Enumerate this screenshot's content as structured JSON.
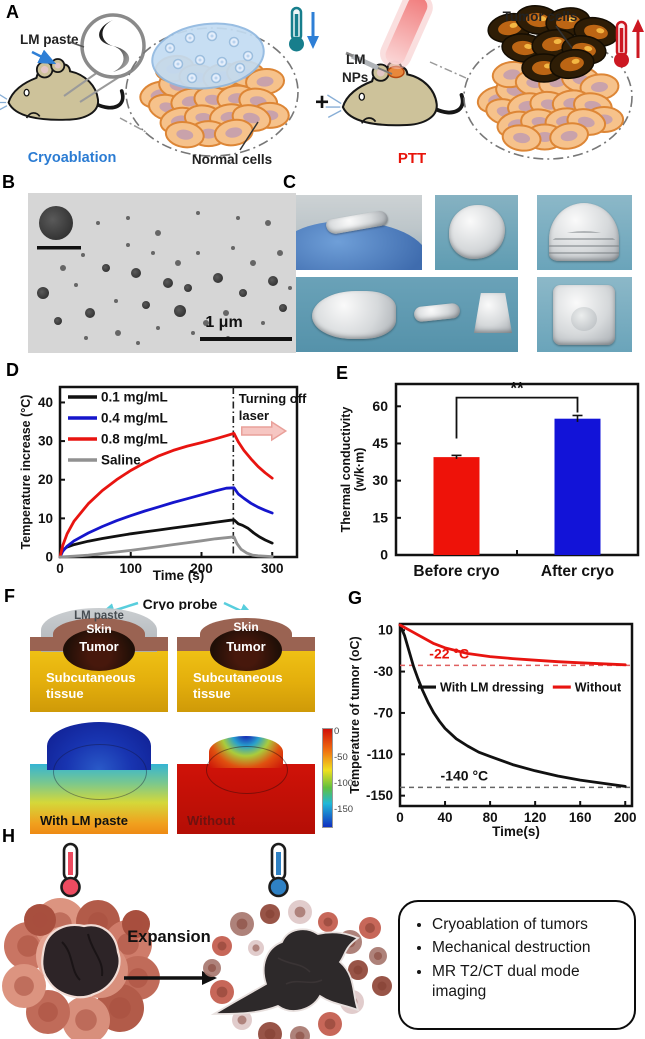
{
  "colors": {
    "cryo_blue": "#2b7cd3",
    "ptt_red": "#e8140a",
    "bar_red": "#ee1209",
    "bar_blue": "#1213d8"
  },
  "panels": {
    "a": {
      "label": "A",
      "lm_paste": "LM paste",
      "cryoablation": "Cryoablation",
      "normal_cells": "Normal cells",
      "plus": "+",
      "lm": "LM",
      "nps": "NPs",
      "ptt": "PTT",
      "tumor_cells": "Tumor cells"
    },
    "b": {
      "label": "B",
      "scale_label": "1 μm"
    },
    "c": {
      "label": "C"
    },
    "d": {
      "label": "D"
    },
    "e": {
      "label": "E"
    },
    "f": {
      "label": "F",
      "cryo_probe": "Cryo probe",
      "lm_paste": "LM paste",
      "skin": "Skin",
      "tumor": "Tumor",
      "subcut1": "Subcutaneous",
      "subcut2": "tissue",
      "with_lm": "With LM paste",
      "without": "Without",
      "colorbar_ticks": [
        "0",
        "-50",
        "-100",
        "-150"
      ]
    },
    "g": {
      "label": "G"
    },
    "h": {
      "label": "H",
      "expansion": "Expansion",
      "bullets": [
        "Cryoablation of tumors",
        "Mechanical destruction",
        "MR T2/CT dual mode imaging"
      ]
    }
  },
  "chart_data": [
    {
      "id": "panel-d",
      "type": "line",
      "title": "",
      "xlabel": "Time (s)",
      "ylabel": "Temperature increase (°C)",
      "xlim": [
        0,
        335
      ],
      "ylim": [
        0,
        44
      ],
      "xticks": [
        0,
        100,
        200,
        300
      ],
      "yticks": [
        0,
        10,
        20,
        30,
        40
      ],
      "legend": {
        "position": "top-left",
        "stacked": true
      },
      "vline": 245,
      "annotation": {
        "x": 247,
        "lines": [
          "Turning off",
          "laser"
        ]
      },
      "series": [
        {
          "name": "0.1 mg/mL",
          "color": "#111111",
          "x": [
            0,
            4,
            10,
            20,
            40,
            60,
            80,
            100,
            120,
            140,
            160,
            180,
            200,
            220,
            240,
            246,
            252,
            258,
            266,
            274,
            282,
            290,
            300
          ],
          "y": [
            0,
            1.8,
            2.6,
            3.2,
            4.1,
            4.8,
            5.4,
            6,
            6.5,
            7,
            7.5,
            8,
            8.5,
            9,
            9.5,
            9.6,
            8.6,
            8.2,
            7.4,
            6.2,
            5.2,
            4.4,
            3.6
          ]
        },
        {
          "name": "0.4 mg/mL",
          "color": "#1515cc",
          "x": [
            0,
            4,
            10,
            20,
            40,
            60,
            80,
            100,
            120,
            140,
            160,
            180,
            200,
            220,
            235,
            246,
            252,
            260,
            270,
            280,
            290,
            300
          ],
          "y": [
            0,
            1.5,
            2.8,
            4.2,
            6.2,
            7.9,
            9.4,
            10.7,
            11.9,
            13,
            14.1,
            15.1,
            16.1,
            17.1,
            17.8,
            17.9,
            16.3,
            15.2,
            13.9,
            12.9,
            12.1,
            11.4
          ]
        },
        {
          "name": "0.8 mg/mL",
          "color": "#e81410",
          "x": [
            0,
            4,
            10,
            20,
            40,
            60,
            80,
            100,
            120,
            140,
            160,
            180,
            200,
            220,
            235,
            246,
            252,
            260,
            270,
            280,
            290,
            300
          ],
          "y": [
            0,
            3,
            6,
            9.3,
            13.8,
            17.2,
            20,
            22.4,
            24.4,
            26.2,
            27.6,
            28.7,
            29.6,
            30.6,
            31.4,
            32,
            29.8,
            27.6,
            25.4,
            23.4,
            21.8,
            20.4
          ]
        },
        {
          "name": "Saline",
          "color": "#919191",
          "x": [
            0,
            20,
            40,
            60,
            80,
            100,
            120,
            140,
            160,
            180,
            200,
            220,
            240,
            246,
            250,
            256,
            264,
            272,
            280,
            300
          ],
          "y": [
            0,
            0.2,
            0.5,
            0.9,
            1.3,
            1.7,
            2.2,
            2.7,
            3.2,
            3.7,
            4.2,
            4.7,
            5.1,
            5.2,
            3.5,
            2,
            1,
            0.5,
            0.3,
            0.1
          ]
        }
      ]
    },
    {
      "id": "panel-e",
      "type": "bar",
      "ylabel_lines": [
        "Thermal conductivity",
        "(w/k·m)"
      ],
      "categories": [
        "Before cryo",
        "After cryo"
      ],
      "values": [
        39.5,
        55
      ],
      "errors": [
        0.7,
        1.3
      ],
      "colors": [
        "#ee1209",
        "#1213d8"
      ],
      "ylim": [
        0,
        69
      ],
      "yticks": [
        0,
        15,
        30,
        45,
        60
      ],
      "significance": {
        "label": "**",
        "top": 63.5,
        "left_drop": 47,
        "right_drop": 57.5
      }
    },
    {
      "id": "panel-g",
      "type": "line",
      "xlabel": "Time(s)",
      "ylabel": "Temperature of tumor (oC)",
      "xlim": [
        0,
        206
      ],
      "ylim": [
        -160,
        16
      ],
      "xticks": [
        0,
        40,
        80,
        120,
        160,
        200
      ],
      "yticks": [
        10,
        -30,
        -70,
        -110,
        -150
      ],
      "legend": {
        "position": "inline",
        "y": -45
      },
      "hlines": [
        {
          "y": -24,
          "color": "#e06060",
          "label": "-22 °C",
          "label_color": "#e8140a",
          "label_x": 26
        },
        {
          "y": -142,
          "color": "#666666",
          "label": "-140 °C",
          "label_color": "#111111",
          "label_x": 36
        }
      ],
      "series": [
        {
          "name": "With LM dressing",
          "color": "#111111",
          "x": [
            0,
            4,
            8,
            12,
            16,
            20,
            25,
            30,
            35,
            40,
            50,
            60,
            70,
            80,
            100,
            120,
            140,
            160,
            180,
            200
          ],
          "y": [
            15,
            5,
            -10,
            -25,
            -37,
            -48,
            -60,
            -70,
            -78,
            -85,
            -95,
            -102,
            -108,
            -112,
            -120,
            -126,
            -131,
            -135,
            -138,
            -141
          ]
        },
        {
          "name": "Without",
          "color": "#e81410",
          "x": [
            0,
            10,
            20,
            30,
            40,
            60,
            80,
            100,
            120,
            140,
            160,
            180,
            200
          ],
          "y": [
            15,
            9,
            3,
            -3,
            -7,
            -12.5,
            -15.5,
            -17.5,
            -19,
            -20.5,
            -21.5,
            -22.5,
            -23.5
          ]
        }
      ]
    }
  ]
}
